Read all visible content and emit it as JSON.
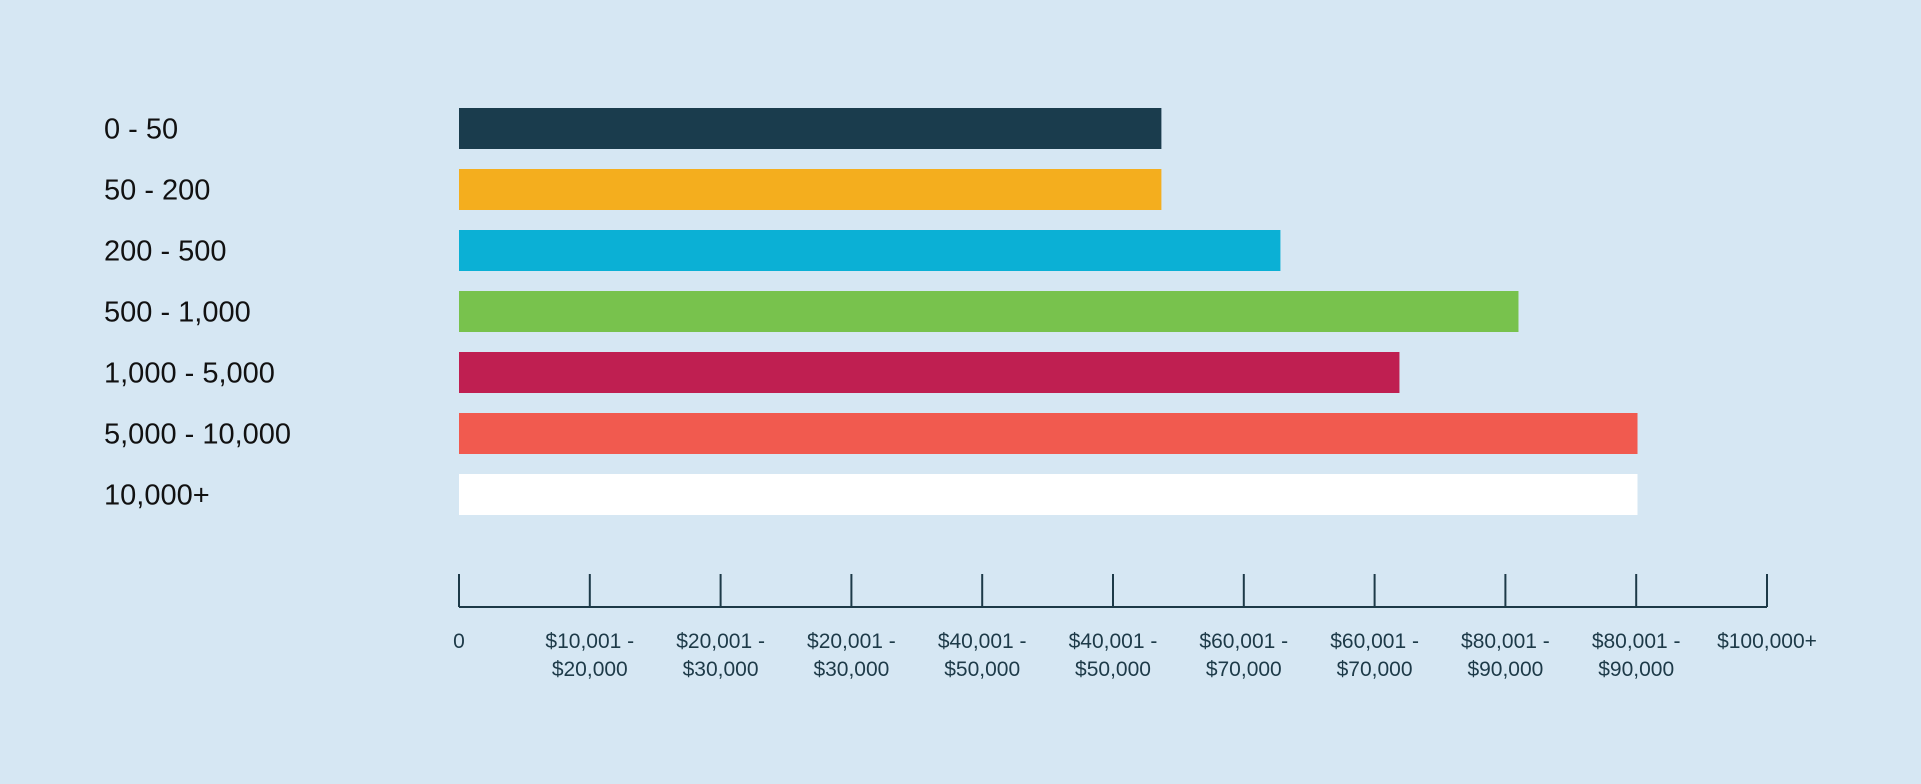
{
  "chart_data": {
    "type": "bar",
    "orientation": "horizontal",
    "title": "",
    "xlabel": "",
    "ylabel": "",
    "categories": [
      "0 - 50",
      "50 - 200",
      "200 - 500",
      "500 - 1,000",
      "1,000 - 5,000",
      "5,000 - 10,000",
      "10,000+"
    ],
    "values": [
      5.37,
      5.37,
      6.28,
      8.1,
      7.19,
      9.01,
      9.01
    ],
    "colors": [
      "#1a3c4d",
      "#f4ae1e",
      "#0bb0d5",
      "#78c24d",
      "#bf1f51",
      "#f15a4f",
      "#ffffff"
    ],
    "xlim": [
      0,
      10
    ],
    "x_ticks": [
      {
        "value": 0,
        "lines": [
          "0"
        ]
      },
      {
        "value": 1,
        "lines": [
          "$10,001 -",
          "$20,000"
        ]
      },
      {
        "value": 2,
        "lines": [
          "$20,001 -",
          "$30,000"
        ]
      },
      {
        "value": 3,
        "lines": [
          "$20,001 -",
          "$30,000"
        ]
      },
      {
        "value": 4,
        "lines": [
          "$40,001 -",
          "$50,000"
        ]
      },
      {
        "value": 5,
        "lines": [
          "$40,001 -",
          "$50,000"
        ]
      },
      {
        "value": 6,
        "lines": [
          "$60,001 -",
          "$70,000"
        ]
      },
      {
        "value": 7,
        "lines": [
          "$60,001 -",
          "$70,000"
        ]
      },
      {
        "value": 8,
        "lines": [
          "$80,001 -",
          "$90,000"
        ]
      },
      {
        "value": 9,
        "lines": [
          "$80,001 -",
          "$90,000"
        ]
      },
      {
        "value": 10,
        "lines": [
          "$100,000+"
        ]
      }
    ],
    "grid": false,
    "legend": "none"
  },
  "colors": {
    "background": "#d6e7f3",
    "axis": "#1d3a48",
    "label_text": "#111111"
  }
}
